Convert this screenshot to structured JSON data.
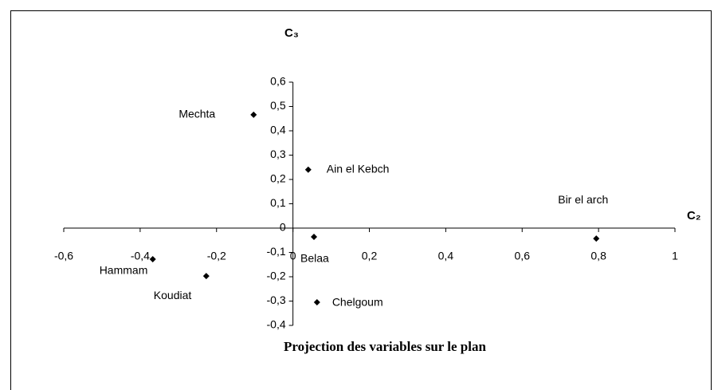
{
  "chart_data": {
    "type": "scatter",
    "title": "Projection des variables sur le plan",
    "x_label": "C₂",
    "y_label": "C₃",
    "labels": [
      "Mechta",
      "Ain el Kebch",
      "Bir el arch",
      "Belaa",
      "Chelgoum",
      "Koudiat",
      "Hammam"
    ],
    "x": [
      -0.103,
      0.04,
      0.794,
      0.055,
      0.063,
      -0.227,
      -0.367
    ],
    "values": [
      0.466,
      0.24,
      -0.043,
      -0.036,
      -0.305,
      -0.197,
      -0.128
    ],
    "color": "#000000",
    "xlim": [
      -0.6,
      1
    ],
    "ylim": [
      -0.4,
      0.6
    ],
    "xticks": [
      {
        "value": -0.6,
        "label": "-0,6"
      },
      {
        "value": -0.4,
        "label": "-0,4"
      },
      {
        "value": -0.2,
        "label": "-0,2"
      },
      0,
      {
        "value": 0.2,
        "label": "0,2"
      },
      {
        "value": 0.4,
        "label": "0,4"
      },
      {
        "value": 0.6,
        "label": "0,6"
      },
      {
        "value": 0.8,
        "label": "0,8"
      },
      1
    ],
    "yticks": [
      {
        "value": -0.4,
        "label": "-0,4"
      },
      {
        "value": -0.3,
        "label": "-0,3"
      },
      {
        "value": -0.2,
        "label": "-0,2"
      },
      {
        "value": -0.1,
        "label": "-0,1"
      },
      0,
      {
        "value": 0.1,
        "label": "0,1"
      },
      {
        "value": 0.2,
        "label": "0,2"
      },
      {
        "value": 0.3,
        "label": "0,3"
      },
      {
        "value": 0.4,
        "label": "0,4"
      },
      {
        "value": 0.5,
        "label": "0,5"
      },
      {
        "value": 0.6,
        "label": "0,6"
      }
    ]
  }
}
